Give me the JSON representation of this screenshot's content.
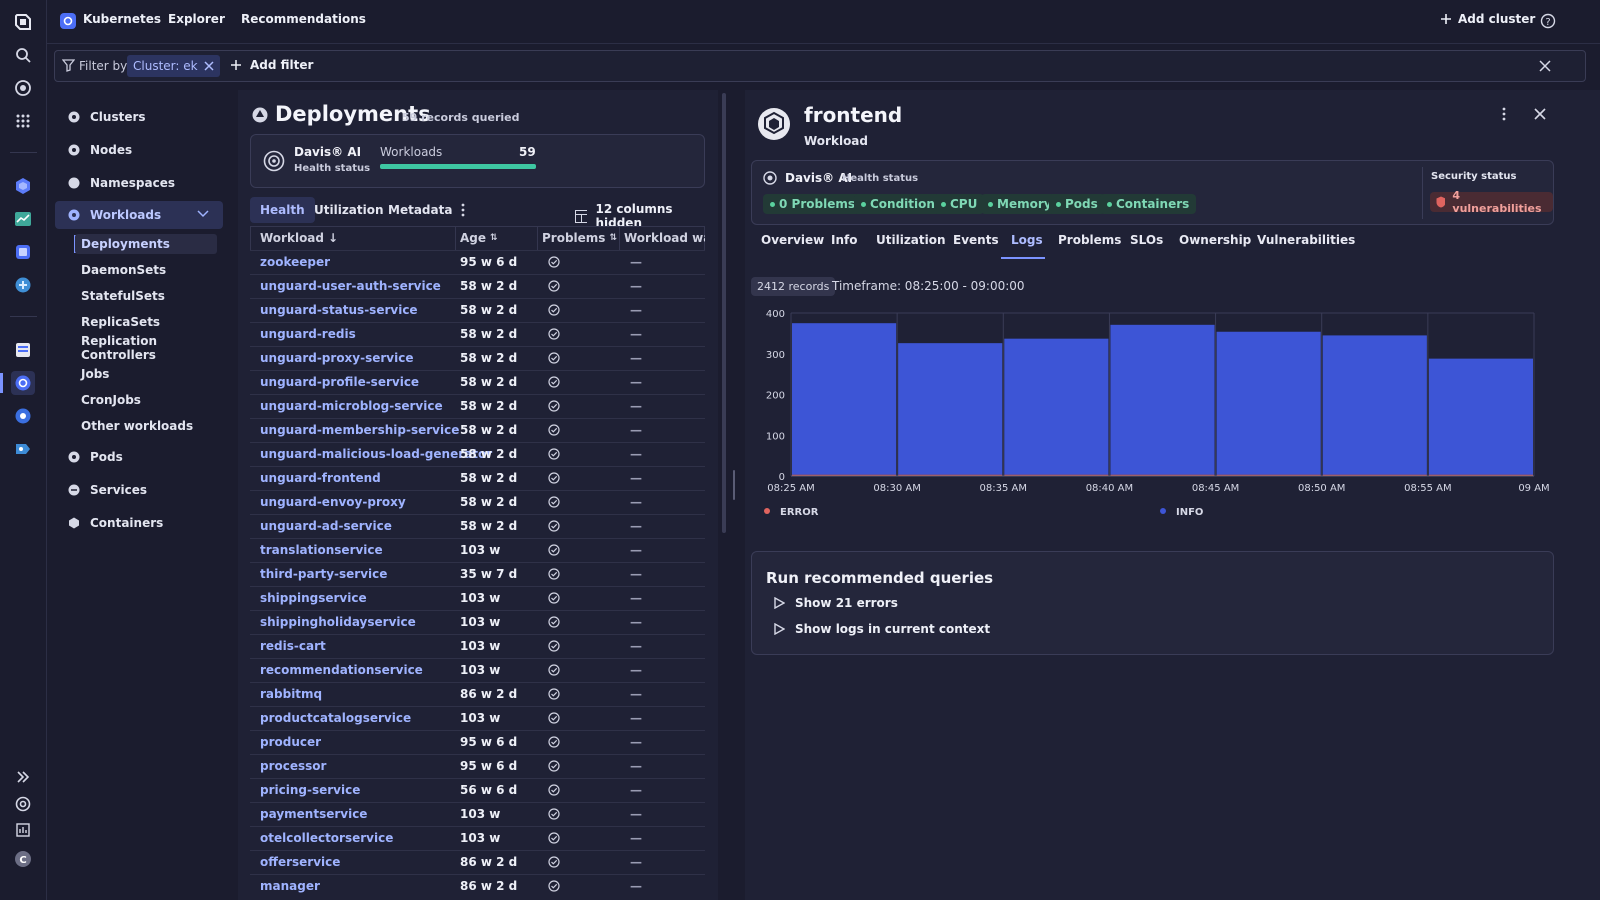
{
  "topbar": {
    "app_name": "Kubernetes",
    "nav_explorer": "Explorer",
    "nav_recommendations": "Recommendations",
    "add_cluster": "Add cluster"
  },
  "filter": {
    "label": "Filter by",
    "chip": "Cluster: eks",
    "add_filter": "Add filter"
  },
  "sidebar": {
    "clusters": "Clusters",
    "nodes": "Nodes",
    "namespaces": "Namespaces",
    "workloads": "Workloads",
    "sub": [
      "Deployments",
      "DaemonSets",
      "StatefulSets",
      "ReplicaSets",
      "Replication Controllers",
      "Jobs",
      "CronJobs",
      "Other workloads"
    ],
    "pods": "Pods",
    "services": "Services",
    "containers": "Containers"
  },
  "deployments": {
    "title": "Deployments",
    "records": "59 records queried",
    "davis_title": "Davis® AI",
    "davis_sub": "Health status",
    "workloads_label": "Workloads",
    "workloads_count": "59",
    "workloads_healthy_fraction": 1.0,
    "tabs": [
      "Health",
      "Utilization",
      "Metadata"
    ],
    "columns_hidden": "12 columns hidden",
    "headers": [
      "Workload",
      "Age",
      "Problems",
      "Workload warni"
    ],
    "rows": [
      {
        "name": "zookeeper",
        "age": "95 w 6 d"
      },
      {
        "name": "unguard-user-auth-service",
        "age": "58 w 2 d"
      },
      {
        "name": "unguard-status-service",
        "age": "58 w 2 d"
      },
      {
        "name": "unguard-redis",
        "age": "58 w 2 d"
      },
      {
        "name": "unguard-proxy-service",
        "age": "58 w 2 d"
      },
      {
        "name": "unguard-profile-service",
        "age": "58 w 2 d"
      },
      {
        "name": "unguard-microblog-service",
        "age": "58 w 2 d"
      },
      {
        "name": "unguard-membership-service",
        "age": "58 w 2 d"
      },
      {
        "name": "unguard-malicious-load-generator",
        "age": "58 w 2 d"
      },
      {
        "name": "unguard-frontend",
        "age": "58 w 2 d"
      },
      {
        "name": "unguard-envoy-proxy",
        "age": "58 w 2 d"
      },
      {
        "name": "unguard-ad-service",
        "age": "58 w 2 d"
      },
      {
        "name": "translationservice",
        "age": "103 w"
      },
      {
        "name": "third-party-service",
        "age": "35 w 7 d"
      },
      {
        "name": "shippingservice",
        "age": "103 w"
      },
      {
        "name": "shippingholidayservice",
        "age": "103 w"
      },
      {
        "name": "redis-cart",
        "age": "103 w"
      },
      {
        "name": "recommendationservice",
        "age": "103 w"
      },
      {
        "name": "rabbitmq",
        "age": "86 w 2 d"
      },
      {
        "name": "productcatalogservice",
        "age": "103 w"
      },
      {
        "name": "producer",
        "age": "95 w 6 d"
      },
      {
        "name": "processor",
        "age": "95 w 6 d"
      },
      {
        "name": "pricing-service",
        "age": "56 w 6 d"
      },
      {
        "name": "paymentservice",
        "age": "103 w"
      },
      {
        "name": "otelcollectorservice",
        "age": "103 w"
      },
      {
        "name": "offerservice",
        "age": "86 w 2 d"
      },
      {
        "name": "manager",
        "age": "86 w 2 d"
      }
    ],
    "dash": "—"
  },
  "detail": {
    "title": "frontend",
    "subtitle": "Workload",
    "davis_title": "Davis® AI",
    "davis_sub": "Health status",
    "chips": [
      "0 Problems",
      "Conditions",
      "CPU",
      "Memory",
      "Pods",
      "Containers"
    ],
    "security_label": "Security status",
    "vulnerabilities": "4 vulnerabilities",
    "tabs": [
      "Overview",
      "Info",
      "Utilization",
      "Events",
      "Logs",
      "Problems",
      "SLOs",
      "Ownership",
      "Vulnerabilities"
    ],
    "active_tab": "Logs",
    "records_badge": "2412 records",
    "timeframe": "Timeframe: 08:25:00 - 09:00:00",
    "queries_title": "Run recommended queries",
    "query_1": "Show 21 errors",
    "query_2": "Show logs in current context"
  },
  "chart_data": {
    "type": "bar",
    "stacked": true,
    "categories": [
      "08:25 AM",
      "08:30 AM",
      "08:35 AM",
      "08:40 AM",
      "08:45 AM",
      "08:50 AM",
      "08:55 AM"
    ],
    "x_tick_labels": [
      "08:25 AM",
      "08:30 AM",
      "08:35 AM",
      "08:40 AM",
      "08:45 AM",
      "08:50 AM",
      "08:55 AM",
      "09 AM"
    ],
    "series": [
      {
        "name": "ERROR",
        "color": "#e0645f",
        "values": [
          3,
          3,
          3,
          3,
          3,
          3,
          3
        ]
      },
      {
        "name": "INFO",
        "color": "#3d55d6",
        "values": [
          372,
          323,
          334,
          368,
          351,
          342,
          285
        ]
      }
    ],
    "y_ticks": [
      0,
      100,
      200,
      300,
      400
    ],
    "ylim": [
      0,
      400
    ],
    "grid": true,
    "legend": "bottom"
  },
  "colors": {
    "accent": "#4c6ef5",
    "link": "#9fb3ff",
    "healthy": "#5ad19e",
    "critical": "#e0645f"
  }
}
